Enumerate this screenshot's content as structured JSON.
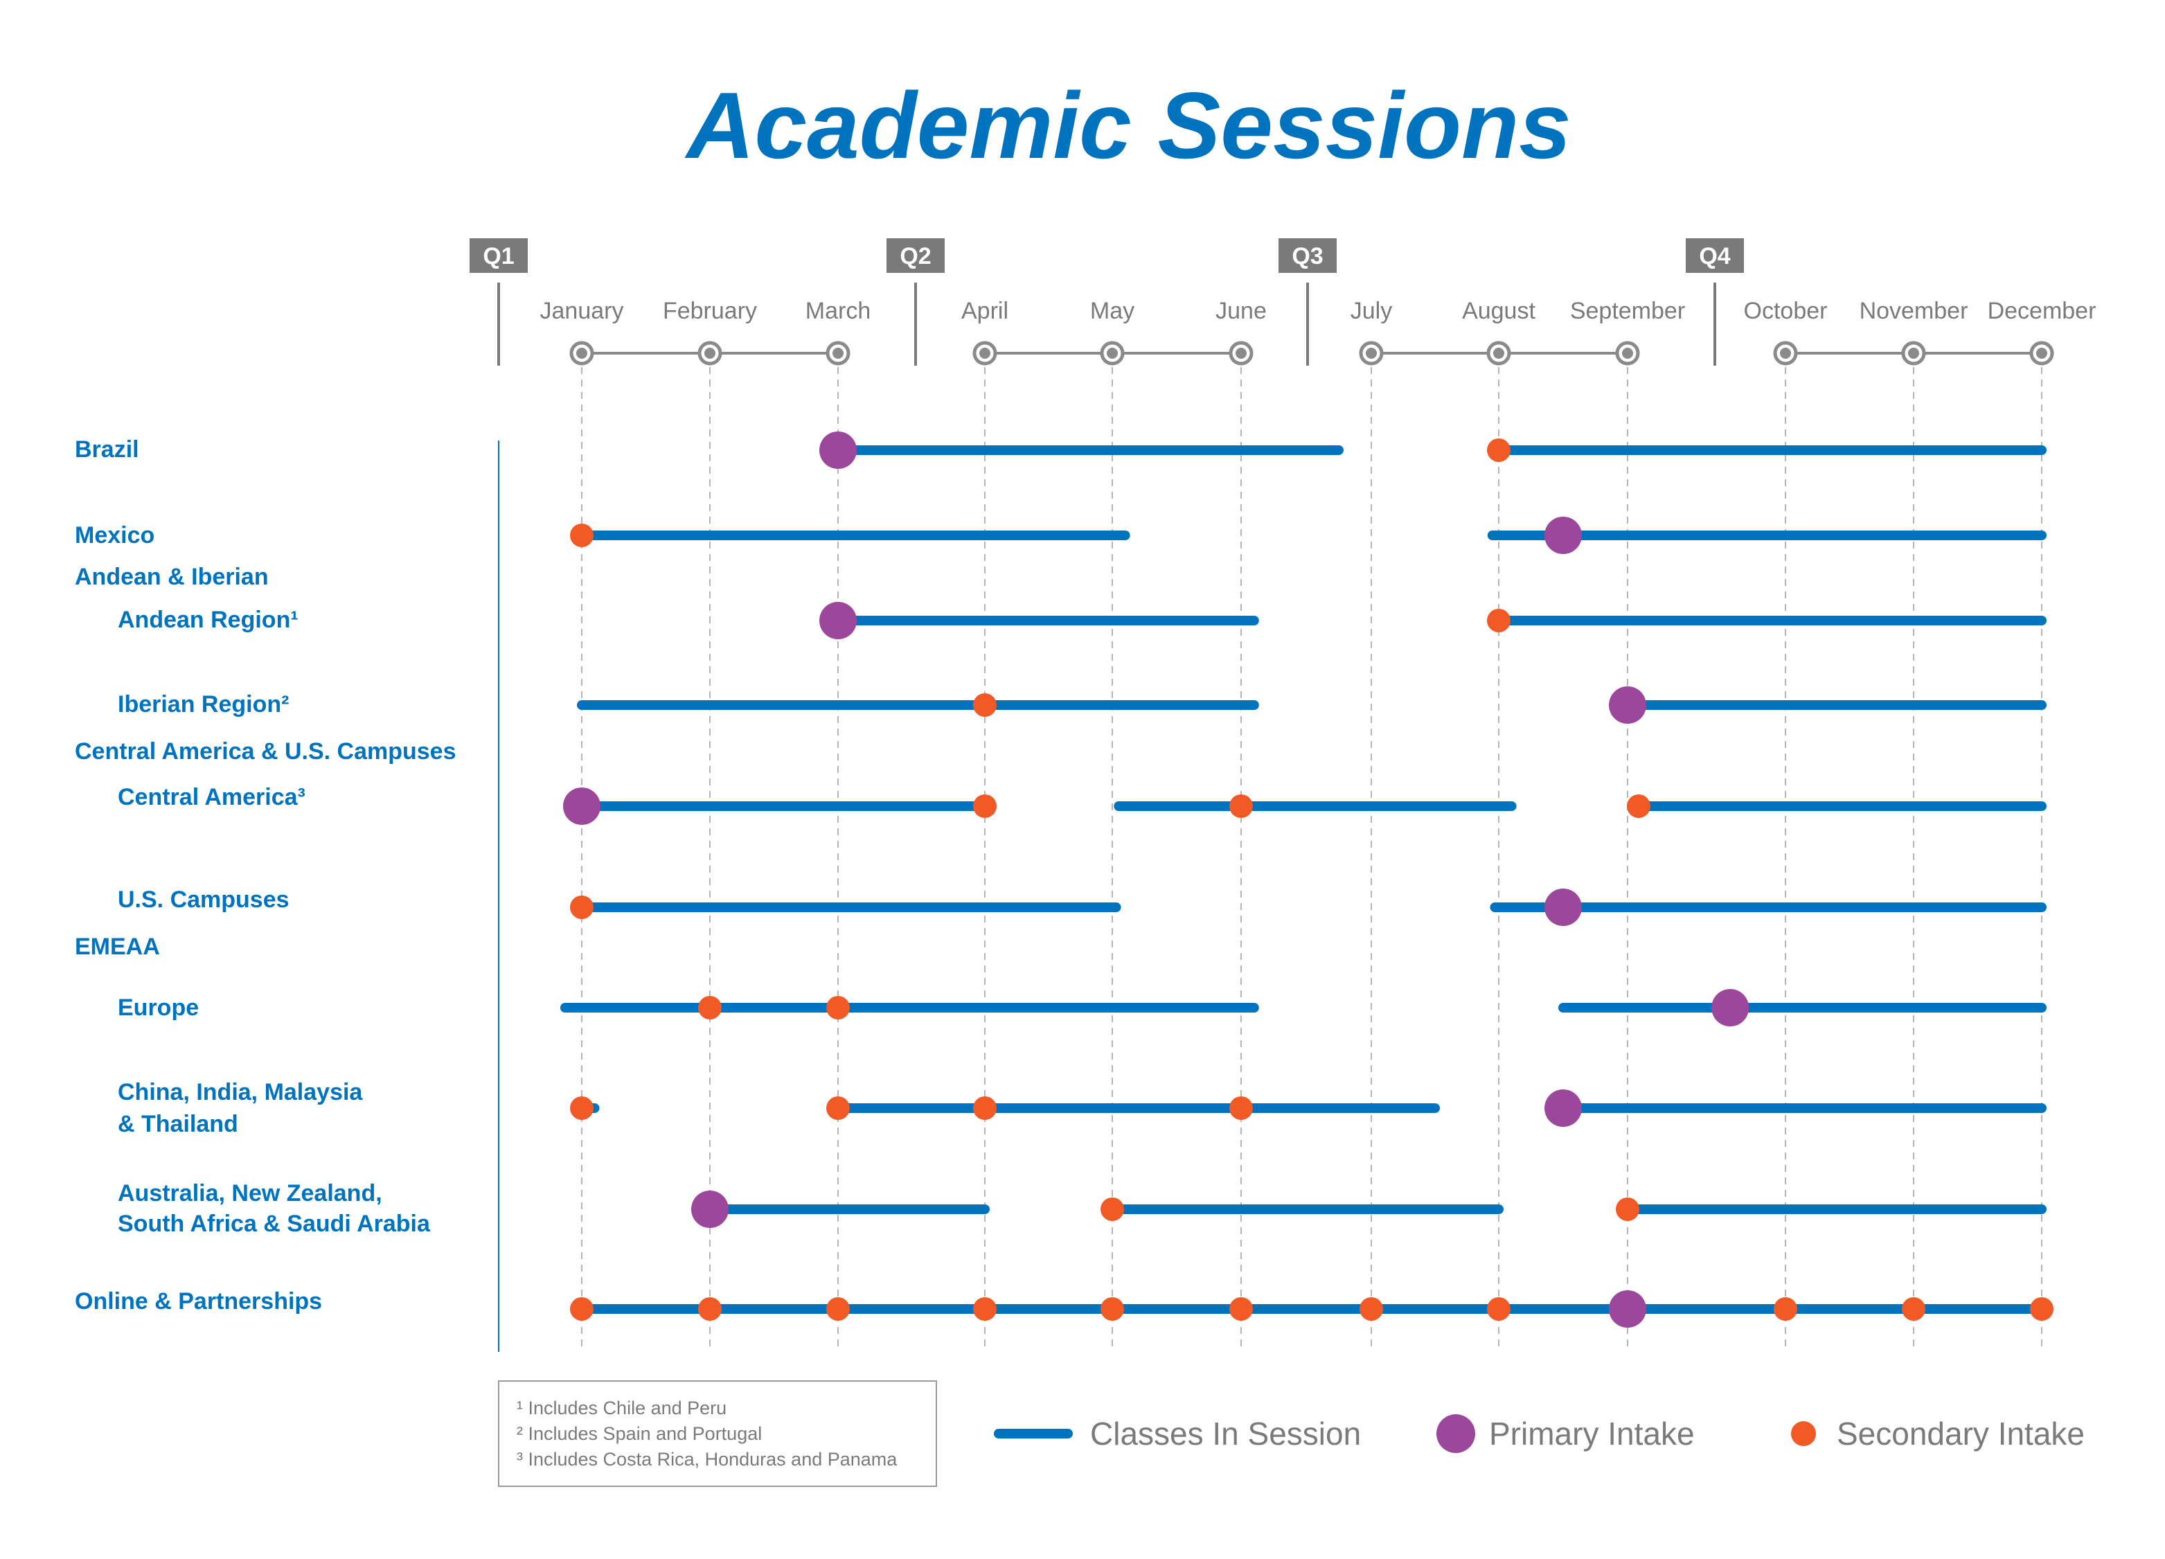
{
  "title": "Academic Sessions",
  "colors": {
    "title": "#0073BE",
    "bar": "#0073BE",
    "primary": "#9B479C",
    "secondary": "#F15A24",
    "axis": "#7a7a7a"
  },
  "chart_data": {
    "type": "timeline",
    "title": "Academic Sessions",
    "quarters": [
      "Q1",
      "Q2",
      "Q3",
      "Q4"
    ],
    "months": [
      "January",
      "February",
      "March",
      "April",
      "May",
      "June",
      "July",
      "August",
      "September",
      "October",
      "November",
      "December"
    ],
    "x_units": "month (1 = January, 12 = December)",
    "grid": true,
    "legend_position": "bottom-right",
    "row_labels": [
      {
        "text": "Brazil",
        "indent": false
      },
      {
        "text": "Mexico",
        "indent": false
      },
      {
        "text": "Andean & Iberian",
        "indent": false
      },
      {
        "text": "Andean Region¹",
        "indent": true
      },
      {
        "text": "Iberian Region²",
        "indent": true
      },
      {
        "text": "Central America & U.S. Campuses",
        "indent": false
      },
      {
        "text": "Central America³",
        "indent": true
      },
      {
        "text": "U.S. Campuses",
        "indent": true
      },
      {
        "text": "EMEAA",
        "indent": false
      },
      {
        "text": "Europe",
        "indent": true
      },
      {
        "text": "China, India, Malaysia",
        "indent": true
      },
      {
        "text": "& Thailand",
        "indent": true
      },
      {
        "text": "Australia, New Zealand,",
        "indent": true
      },
      {
        "text": "South Africa & Saudi Arabia",
        "indent": true
      },
      {
        "text": "Online & Partnerships",
        "indent": false
      }
    ],
    "rows": [
      {
        "name": "Brazil",
        "sessions": [
          [
            3,
            6.75
          ],
          [
            7.95,
            12
          ]
        ],
        "primary": [
          3
        ],
        "secondary": [
          8
        ]
      },
      {
        "name": "Mexico",
        "sessions": [
          [
            1,
            5.1
          ],
          [
            7.95,
            12
          ]
        ],
        "primary": [
          8.5
        ],
        "secondary": [
          1
        ]
      },
      {
        "name": "Andean Region",
        "sessions": [
          [
            3,
            6.1
          ],
          [
            7.95,
            12
          ]
        ],
        "primary": [
          3
        ],
        "secondary": [
          8
        ]
      },
      {
        "name": "Iberian Region",
        "sessions": [
          [
            1,
            6.1
          ],
          [
            9,
            12
          ]
        ],
        "primary": [
          9
        ],
        "secondary": [
          4
        ]
      },
      {
        "name": "Central America",
        "sessions": [
          [
            1,
            4
          ],
          [
            5.05,
            8.1
          ],
          [
            9.07,
            12
          ]
        ],
        "primary": [
          1
        ],
        "secondary": [
          4,
          6,
          9.07
        ]
      },
      {
        "name": "U.S. Campuses",
        "sessions": [
          [
            1,
            5.03
          ],
          [
            7.97,
            12
          ]
        ],
        "primary": [
          8.5
        ],
        "secondary": [
          1
        ]
      },
      {
        "name": "Europe",
        "sessions": [
          [
            0.87,
            6.1
          ],
          [
            8.5,
            12
          ]
        ],
        "primary": [
          9.65
        ],
        "secondary": [
          2,
          3
        ]
      },
      {
        "name": "China, India, Malaysia & Thailand",
        "sessions": [
          [
            1,
            1.1
          ],
          [
            3,
            7.5
          ],
          [
            8.5,
            12
          ]
        ],
        "primary": [
          8.5
        ],
        "secondary": [
          1,
          3,
          4,
          6
        ]
      },
      {
        "name": "Australia, New Zealand, South Africa & Saudi Arabia",
        "sessions": [
          [
            2,
            4
          ],
          [
            5,
            8
          ],
          [
            9,
            12
          ]
        ],
        "primary": [
          2
        ],
        "secondary": [
          5,
          9
        ]
      },
      {
        "name": "Online & Partnerships",
        "sessions": [
          [
            1,
            12
          ]
        ],
        "primary": [
          9
        ],
        "secondary": [
          1,
          2,
          3,
          4,
          5,
          6,
          7,
          8,
          10,
          11,
          12
        ]
      }
    ],
    "legend": {
      "session": "Classes In Session",
      "primary": "Primary Intake",
      "secondary": "Secondary Intake"
    }
  },
  "footnotes": [
    "¹ Includes Chile and Peru",
    "² Includes Spain and Portugal",
    "³ Includes Costa Rica, Honduras and Panama"
  ]
}
